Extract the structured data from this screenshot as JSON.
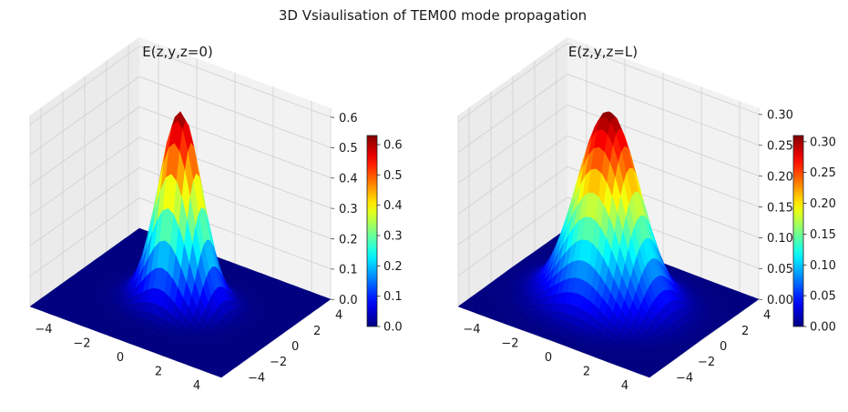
{
  "figure": {
    "suptitle": "3D Vsiaulisation of TEM00 mode propagation"
  },
  "colors": {
    "pane_fill": "#f2f2f2",
    "pane_side": "#ebebeb",
    "grid": "#cfcfcf",
    "colormap": "jet"
  },
  "chart_data": [
    {
      "type": "surface3d",
      "title": "E(z,y,z=0)",
      "x": {
        "range": [
          -5,
          5
        ],
        "ticks": [
          "−4",
          "−2",
          "0",
          "2",
          "4"
        ]
      },
      "y": {
        "range": [
          -5,
          5
        ],
        "ticks": [
          "−4",
          "−2",
          "0",
          "2",
          "4"
        ]
      },
      "z": {
        "range": [
          0,
          0.63
        ],
        "ticks": [
          "0.0",
          "0.1",
          "0.2",
          "0.3",
          "0.4",
          "0.5",
          "0.6"
        ]
      },
      "surface": {
        "function": "gaussian",
        "peak": 0.63,
        "width": 1.0
      },
      "colorbar": {
        "min": 0,
        "max": 0.63,
        "ticks": [
          "0.0",
          "0.1",
          "0.2",
          "0.3",
          "0.4",
          "0.5",
          "0.6"
        ]
      }
    },
    {
      "type": "surface3d",
      "title": "E(z,y,z=L)",
      "x": {
        "range": [
          -5,
          5
        ],
        "ticks": [
          "−4",
          "−2",
          "0",
          "2",
          "4"
        ]
      },
      "y": {
        "range": [
          -5,
          5
        ],
        "ticks": [
          "−4",
          "−2",
          "0",
          "2",
          "4"
        ]
      },
      "z": {
        "range": [
          0,
          0.31
        ],
        "ticks": [
          "0.00",
          "0.05",
          "0.10",
          "0.15",
          "0.20",
          "0.25",
          "0.30"
        ]
      },
      "surface": {
        "function": "gaussian",
        "peak": 0.31,
        "width": 1.45
      },
      "colorbar": {
        "min": 0,
        "max": 0.31,
        "ticks": [
          "0.00",
          "0.05",
          "0.10",
          "0.15",
          "0.20",
          "0.25",
          "0.30"
        ]
      }
    }
  ]
}
